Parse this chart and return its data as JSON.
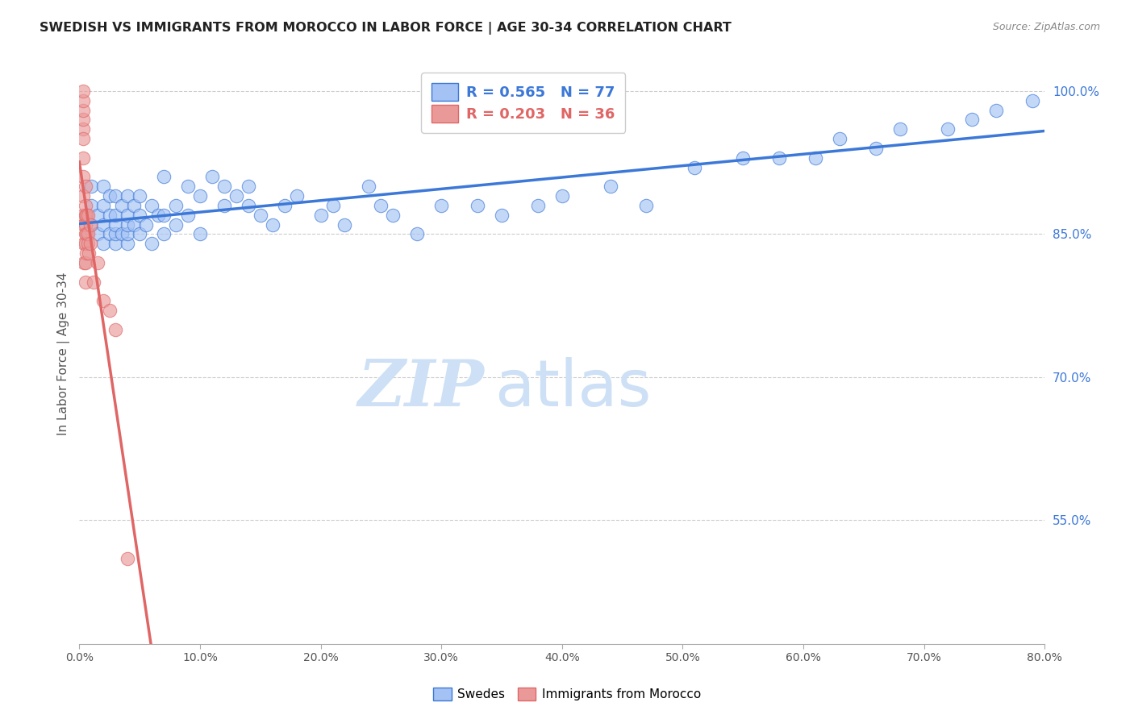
{
  "title": "SWEDISH VS IMMIGRANTS FROM MOROCCO IN LABOR FORCE | AGE 30-34 CORRELATION CHART",
  "source": "Source: ZipAtlas.com",
  "ylabel": "In Labor Force | Age 30-34",
  "xaxis_ticks": [
    "0.0%",
    "10.0%",
    "20.0%",
    "30.0%",
    "40.0%",
    "50.0%",
    "60.0%",
    "70.0%",
    "80.0%"
  ],
  "yaxis_ticks_right": [
    "100.0%",
    "85.0%",
    "70.0%",
    "55.0%"
  ],
  "xlim": [
    0.0,
    0.8
  ],
  "ylim": [
    0.42,
    1.03
  ],
  "legend_labels": [
    "Swedes",
    "Immigrants from Morocco"
  ],
  "R_swedes": 0.565,
  "N_swedes": 77,
  "R_morocco": 0.203,
  "N_morocco": 36,
  "blue_color": "#a4c2f4",
  "pink_color": "#ea9999",
  "blue_line_color": "#3c78d8",
  "pink_line_color": "#e06666",
  "watermark_zip": "ZIP",
  "watermark_atlas": "atlas",
  "watermark_color": "#cde0f5",
  "swedes_x": [
    0.01,
    0.01,
    0.01,
    0.015,
    0.015,
    0.02,
    0.02,
    0.02,
    0.02,
    0.025,
    0.025,
    0.025,
    0.03,
    0.03,
    0.03,
    0.03,
    0.03,
    0.035,
    0.035,
    0.04,
    0.04,
    0.04,
    0.04,
    0.04,
    0.045,
    0.045,
    0.05,
    0.05,
    0.05,
    0.055,
    0.06,
    0.06,
    0.065,
    0.07,
    0.07,
    0.07,
    0.08,
    0.08,
    0.09,
    0.09,
    0.1,
    0.1,
    0.11,
    0.12,
    0.12,
    0.13,
    0.14,
    0.14,
    0.15,
    0.16,
    0.17,
    0.18,
    0.2,
    0.21,
    0.22,
    0.24,
    0.25,
    0.26,
    0.28,
    0.3,
    0.33,
    0.35,
    0.38,
    0.4,
    0.44,
    0.47,
    0.51,
    0.55,
    0.58,
    0.61,
    0.63,
    0.66,
    0.68,
    0.72,
    0.74,
    0.76,
    0.79
  ],
  "swedes_y": [
    0.86,
    0.88,
    0.9,
    0.85,
    0.87,
    0.84,
    0.86,
    0.88,
    0.9,
    0.85,
    0.87,
    0.89,
    0.84,
    0.85,
    0.86,
    0.87,
    0.89,
    0.85,
    0.88,
    0.84,
    0.85,
    0.86,
    0.87,
    0.89,
    0.86,
    0.88,
    0.85,
    0.87,
    0.89,
    0.86,
    0.84,
    0.88,
    0.87,
    0.85,
    0.87,
    0.91,
    0.86,
    0.88,
    0.87,
    0.9,
    0.85,
    0.89,
    0.91,
    0.88,
    0.9,
    0.89,
    0.88,
    0.9,
    0.87,
    0.86,
    0.88,
    0.89,
    0.87,
    0.88,
    0.86,
    0.9,
    0.88,
    0.87,
    0.85,
    0.88,
    0.88,
    0.87,
    0.88,
    0.89,
    0.9,
    0.88,
    0.92,
    0.93,
    0.93,
    0.93,
    0.95,
    0.94,
    0.96,
    0.96,
    0.97,
    0.98,
    0.99
  ],
  "morocco_x": [
    0.003,
    0.003,
    0.003,
    0.003,
    0.003,
    0.003,
    0.003,
    0.003,
    0.003,
    0.003,
    0.004,
    0.004,
    0.004,
    0.005,
    0.005,
    0.005,
    0.005,
    0.005,
    0.005,
    0.005,
    0.005,
    0.006,
    0.006,
    0.006,
    0.007,
    0.007,
    0.007,
    0.008,
    0.009,
    0.009,
    0.012,
    0.015,
    0.02,
    0.025,
    0.03,
    0.04
  ],
  "morocco_y": [
    0.96,
    0.97,
    0.98,
    0.99,
    1.0,
    0.95,
    0.93,
    0.91,
    0.89,
    0.87,
    0.86,
    0.84,
    0.82,
    0.85,
    0.87,
    0.88,
    0.9,
    0.84,
    0.82,
    0.8,
    0.86,
    0.83,
    0.85,
    0.87,
    0.84,
    0.85,
    0.87,
    0.83,
    0.84,
    0.86,
    0.8,
    0.82,
    0.78,
    0.77,
    0.75,
    0.51
  ]
}
